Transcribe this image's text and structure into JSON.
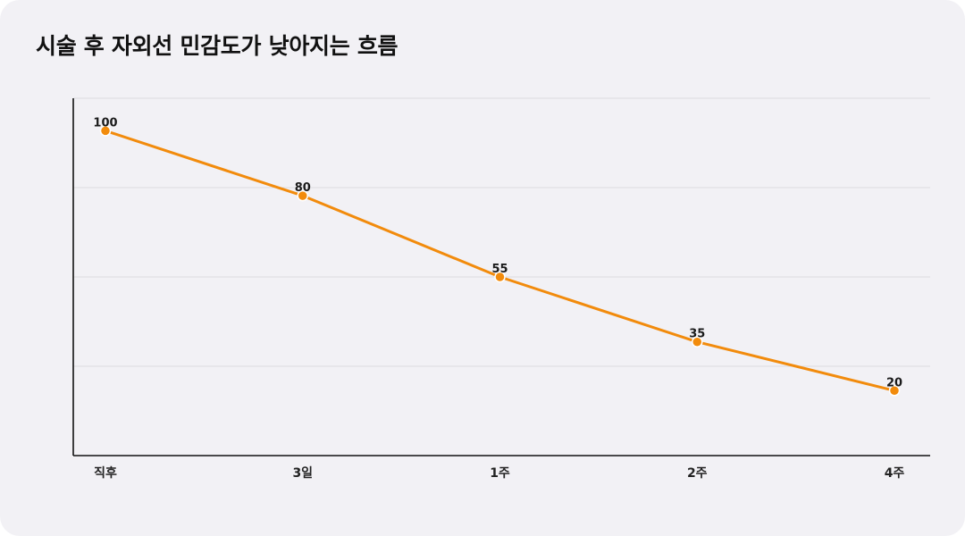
{
  "colors": {
    "background": "#f2f1f5",
    "line": "#f28b0c",
    "point_fill": "#f28b0c",
    "point_stroke": "#ffffff",
    "grid": "#dcdce0",
    "axis": "#111111"
  },
  "chart_data": {
    "type": "line",
    "title": "시술 후 자외선 민감도가 낮아지는 흐름",
    "xlabel": "",
    "ylabel": "",
    "categories": [
      "직후",
      "3일",
      "1주",
      "2주",
      "4주"
    ],
    "series": [
      {
        "values": [
          100,
          80,
          55,
          35,
          20
        ]
      }
    ],
    "ylim": [
      0,
      110
    ],
    "grid": true,
    "data_labels": true,
    "y_tick_labels_shown": false
  }
}
